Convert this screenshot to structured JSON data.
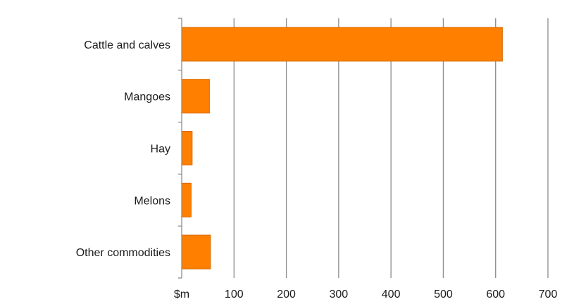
{
  "chart_data": {
    "type": "bar",
    "orientation": "horizontal",
    "categories": [
      "Cattle and calves",
      "Mangoes",
      "Hay",
      "Melons",
      "Other commodities"
    ],
    "values": [
      613,
      53,
      20,
      18,
      55
    ],
    "xlim": [
      0,
      700
    ],
    "x_ticks": [
      0,
      100,
      200,
      300,
      400,
      500,
      600,
      700
    ],
    "x_tick_labels": [
      "$m",
      "100",
      "200",
      "300",
      "400",
      "500",
      "600",
      "700"
    ],
    "grid": "vertical",
    "legend": "none",
    "colors": {
      "bar": "#ff7f00",
      "bar_edge": "#d86a00",
      "grid": "#8c8c8c",
      "axis": "#8c8c8c"
    }
  }
}
